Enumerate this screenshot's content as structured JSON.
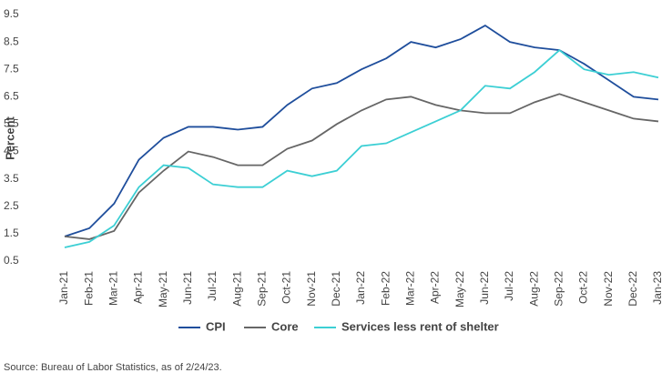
{
  "chart_data": {
    "type": "line",
    "y_label": "Percent",
    "source": "Source: Bureau of Labor Statistics, as of 2/24/23.",
    "categories": [
      "Jan-21",
      "Feb-21",
      "Mar-21",
      "Apr-21",
      "May-21",
      "Jun-21",
      "Jul-21",
      "Aug-21",
      "Sep-21",
      "Oct-21",
      "Nov-21",
      "Dec-21",
      "Jan-22",
      "Feb-22",
      "Mar-22",
      "Apr-22",
      "May-22",
      "Jun-22",
      "Jul-22",
      "Aug-22",
      "Sep-22",
      "Oct-22",
      "Nov-22",
      "Dec-22",
      "Jan-23"
    ],
    "series": [
      {
        "name": "CPI",
        "color": "#1f4e9c",
        "values": [
          1.4,
          1.7,
          2.6,
          4.2,
          5.0,
          5.4,
          5.4,
          5.3,
          5.4,
          6.2,
          6.8,
          7.0,
          7.5,
          7.9,
          8.5,
          8.3,
          8.6,
          9.1,
          8.5,
          8.3,
          8.2,
          7.7,
          7.1,
          6.5,
          6.4
        ]
      },
      {
        "name": "Core",
        "color": "#666666",
        "values": [
          1.4,
          1.3,
          1.6,
          3.0,
          3.8,
          4.5,
          4.3,
          4.0,
          4.0,
          4.6,
          4.9,
          5.5,
          6.0,
          6.4,
          6.5,
          6.2,
          6.0,
          5.9,
          5.9,
          6.3,
          6.6,
          6.3,
          6.0,
          5.7,
          5.6
        ]
      },
      {
        "name": "Services less rent of shelter",
        "color": "#3ccfd4",
        "values": [
          1.0,
          1.2,
          1.8,
          3.2,
          4.0,
          3.9,
          3.3,
          3.2,
          3.2,
          3.8,
          3.6,
          3.8,
          4.7,
          4.8,
          5.2,
          5.6,
          6.0,
          6.9,
          6.8,
          7.4,
          8.2,
          7.5,
          7.3,
          7.4,
          7.2
        ]
      }
    ],
    "ylim": [
      0.5,
      9.5
    ],
    "yticks": [
      0.5,
      1.5,
      2.5,
      3.5,
      4.5,
      5.5,
      6.5,
      7.5,
      8.5,
      9.5
    ],
    "grid": false
  }
}
